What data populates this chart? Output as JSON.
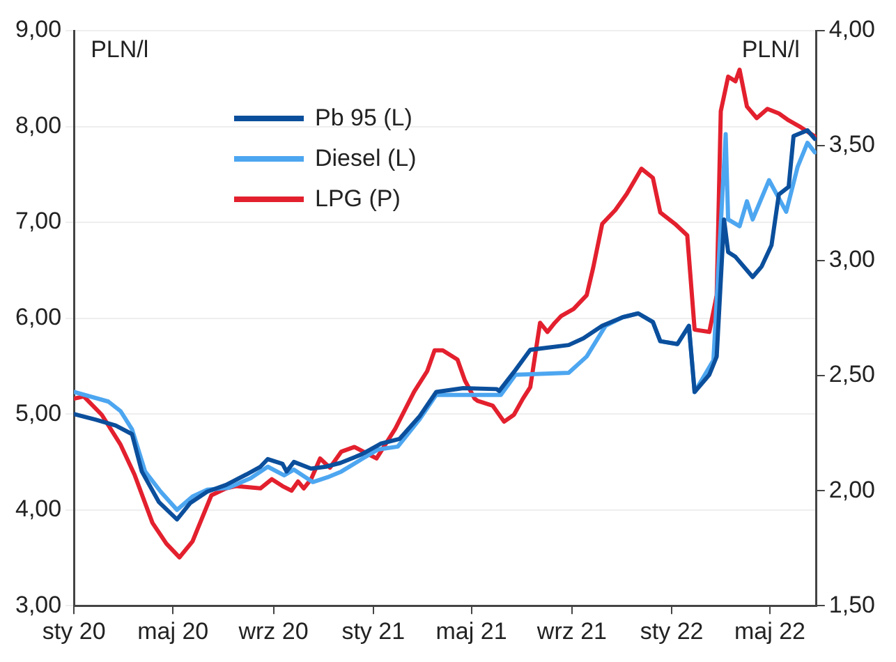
{
  "chart_data": {
    "type": "line",
    "ylabel": "PLN/l",
    "y2label": "PLN/l",
    "xlim": [
      "2020-01-01",
      "2022-06-27"
    ],
    "xticks": [
      {
        "value": "2020-01-01",
        "label": "sty 20"
      },
      {
        "value": "2020-05-01",
        "label": "maj 20"
      },
      {
        "value": "2020-09-01",
        "label": "wrz 20"
      },
      {
        "value": "2021-01-01",
        "label": "sty 21"
      },
      {
        "value": "2021-05-01",
        "label": "maj 21"
      },
      {
        "value": "2021-09-01",
        "label": "wrz 21"
      },
      {
        "value": "2022-01-01",
        "label": "sty 22"
      },
      {
        "value": "2022-05-01",
        "label": "maj 22"
      }
    ],
    "ylim": [
      3,
      9
    ],
    "yticks": [
      {
        "value": 3,
        "label": "3,00"
      },
      {
        "value": 4,
        "label": "4,00"
      },
      {
        "value": 5,
        "label": "5,00"
      },
      {
        "value": 6,
        "label": "6,00"
      },
      {
        "value": 7,
        "label": "7,00"
      },
      {
        "value": 8,
        "label": "8,00"
      },
      {
        "value": 9,
        "label": "9,00"
      }
    ],
    "y2lim": [
      1.5,
      4
    ],
    "y2ticks": [
      {
        "value": 1.5,
        "label": "1,50"
      },
      {
        "value": 2,
        "label": "2,00"
      },
      {
        "value": 2.5,
        "label": "2,50"
      },
      {
        "value": 3,
        "label": "3,00"
      },
      {
        "value": 3.5,
        "label": "3,50"
      },
      {
        "value": 4,
        "label": "4,00"
      }
    ],
    "grid": "y",
    "legend": "top left",
    "marker": "none",
    "line_style": "solid",
    "series": [
      {
        "name": "Pb 95 (L)",
        "color": "#0b4f9c",
        "x": [
          "2020-01-01",
          "2020-01-28",
          "2020-02-21",
          "2020-03-12",
          "2020-03-24",
          "2020-04-14",
          "2020-05-06",
          "2020-05-22",
          "2020-06-12",
          "2020-07-05",
          "2020-07-30",
          "2020-08-16",
          "2020-08-25",
          "2020-09-12",
          "2020-09-17",
          "2020-09-26",
          "2020-10-17",
          "2020-11-04",
          "2020-11-22",
          "2020-12-18",
          "2021-01-10",
          "2021-02-02",
          "2021-02-27",
          "2021-03-19",
          "2021-04-21",
          "2021-06-01",
          "2021-06-04",
          "2021-06-24",
          "2021-07-12",
          "2021-08-28",
          "2021-09-15",
          "2021-10-08",
          "2021-11-02",
          "2021-11-21",
          "2021-12-09",
          "2021-12-18",
          "2022-01-08",
          "2022-01-22",
          "2022-01-29",
          "2022-02-16",
          "2022-02-25",
          "2022-03-06",
          "2022-03-11",
          "2022-03-20",
          "2022-04-10",
          "2022-04-21",
          "2022-05-03",
          "2022-05-12",
          "2022-05-24",
          "2022-05-30",
          "2022-06-16",
          "2022-06-25"
        ],
        "values": [
          5.0,
          4.94,
          4.88,
          4.79,
          4.4,
          4.08,
          3.9,
          4.07,
          4.19,
          4.26,
          4.37,
          4.45,
          4.53,
          4.48,
          4.4,
          4.5,
          4.43,
          4.45,
          4.49,
          4.58,
          4.69,
          4.74,
          4.98,
          5.23,
          5.27,
          5.26,
          5.24,
          5.46,
          5.67,
          5.72,
          5.79,
          5.92,
          6.01,
          6.05,
          5.96,
          5.76,
          5.73,
          5.92,
          5.23,
          5.41,
          5.6,
          7.03,
          6.69,
          6.64,
          6.43,
          6.54,
          6.76,
          7.29,
          7.37,
          7.9,
          7.96,
          7.87
        ]
      },
      {
        "name": "Diesel (L)",
        "color": "#4da6f0",
        "x": [
          "2020-01-01",
          "2020-02-12",
          "2020-02-27",
          "2020-03-12",
          "2020-03-28",
          "2020-04-16",
          "2020-05-06",
          "2020-05-25",
          "2020-06-12",
          "2020-07-08",
          "2020-08-04",
          "2020-08-25",
          "2020-09-14",
          "2020-09-26",
          "2020-10-19",
          "2020-11-06",
          "2020-11-23",
          "2020-12-18",
          "2021-01-07",
          "2021-01-31",
          "2021-02-27",
          "2021-03-19",
          "2021-06-01",
          "2021-06-06",
          "2021-06-24",
          "2021-08-28",
          "2021-09-19",
          "2021-10-12",
          "2021-11-02",
          "2021-11-21",
          "2021-12-09",
          "2021-12-18",
          "2022-01-08",
          "2022-01-22",
          "2022-01-29",
          "2022-02-21",
          "2022-03-08",
          "2022-03-11",
          "2022-03-25",
          "2022-04-03",
          "2022-04-10",
          "2022-04-30",
          "2022-05-21",
          "2022-06-04",
          "2022-06-16",
          "2022-06-25"
        ],
        "values": [
          5.23,
          5.13,
          5.03,
          4.84,
          4.4,
          4.19,
          4.0,
          4.14,
          4.21,
          4.23,
          4.33,
          4.45,
          4.36,
          4.42,
          4.29,
          4.34,
          4.4,
          4.53,
          4.63,
          4.66,
          4.95,
          5.2,
          5.2,
          5.2,
          5.41,
          5.43,
          5.6,
          5.92,
          6.01,
          6.05,
          5.96,
          5.76,
          5.73,
          5.92,
          5.23,
          5.56,
          7.92,
          7.03,
          6.96,
          7.22,
          7.03,
          7.44,
          7.11,
          7.58,
          7.83,
          7.73
        ]
      },
      {
        "name": "LPG (P)",
        "color": "#e3202e",
        "axis": "y2",
        "x": [
          "2020-01-01",
          "2020-01-13",
          "2020-02-04",
          "2020-02-27",
          "2020-03-15",
          "2020-04-06",
          "2020-04-23",
          "2020-05-09",
          "2020-05-25",
          "2020-06-17",
          "2020-07-05",
          "2020-07-17",
          "2020-08-16",
          "2020-08-30",
          "2020-09-12",
          "2020-09-23",
          "2020-10-01",
          "2020-10-08",
          "2020-10-17",
          "2020-10-28",
          "2020-11-09",
          "2020-11-23",
          "2020-12-09",
          "2021-01-05",
          "2021-01-28",
          "2021-02-20",
          "2021-03-08",
          "2021-03-17",
          "2021-03-27",
          "2021-04-14",
          "2021-04-23",
          "2021-05-05",
          "2021-05-09",
          "2021-05-27",
          "2021-06-10",
          "2021-06-22",
          "2021-07-03",
          "2021-07-12",
          "2021-07-24",
          "2021-08-02",
          "2021-08-11",
          "2021-08-19",
          "2021-09-03",
          "2021-09-19",
          "2021-09-27",
          "2021-10-08",
          "2021-10-24",
          "2021-11-07",
          "2021-11-25",
          "2021-12-09",
          "2021-12-18",
          "2022-01-05",
          "2022-01-20",
          "2022-01-29",
          "2022-02-16",
          "2022-02-25",
          "2022-03-02",
          "2022-03-11",
          "2022-03-20",
          "2022-03-25",
          "2022-04-03",
          "2022-04-15",
          "2022-04-28",
          "2022-05-12",
          "2022-05-24",
          "2022-06-08",
          "2022-06-25"
        ],
        "values": [
          2.4,
          2.41,
          2.33,
          2.2,
          2.07,
          1.86,
          1.77,
          1.71,
          1.78,
          1.98,
          2.01,
          2.02,
          2.01,
          2.05,
          2.02,
          2.0,
          2.04,
          2.01,
          2.05,
          2.14,
          2.1,
          2.17,
          2.19,
          2.14,
          2.27,
          2.43,
          2.52,
          2.61,
          2.61,
          2.57,
          2.48,
          2.4,
          2.39,
          2.37,
          2.3,
          2.33,
          2.4,
          2.45,
          2.73,
          2.69,
          2.73,
          2.76,
          2.79,
          2.85,
          2.97,
          3.16,
          3.22,
          3.29,
          3.4,
          3.36,
          3.21,
          3.16,
          3.11,
          2.7,
          2.69,
          2.85,
          3.65,
          3.8,
          3.78,
          3.83,
          3.67,
          3.62,
          3.66,
          3.64,
          3.61,
          3.58,
          3.54
        ]
      }
    ]
  }
}
